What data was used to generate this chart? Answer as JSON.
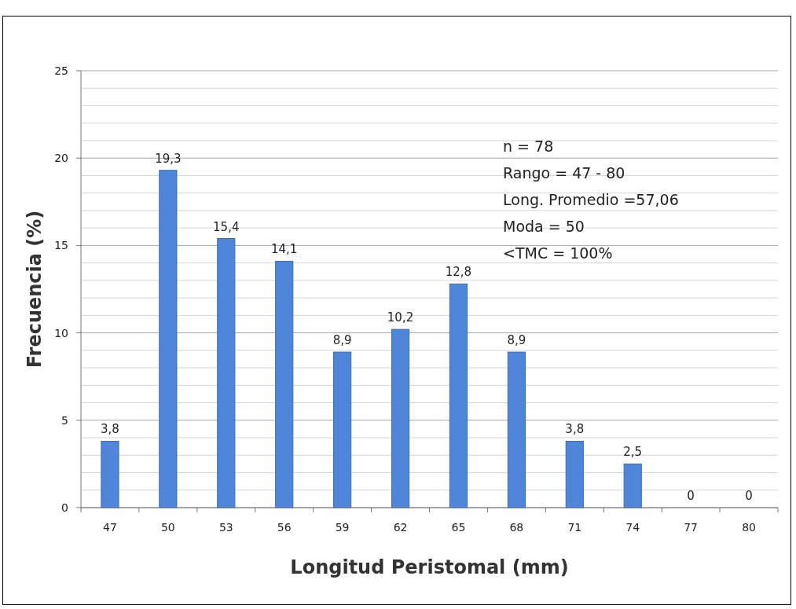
{
  "chart_data": {
    "type": "bar",
    "xlabel": "Longitud Peristomal (mm)",
    "ylabel": "Frecuencia (%)",
    "categories": [
      "47",
      "50",
      "53",
      "56",
      "59",
      "62",
      "65",
      "68",
      "71",
      "74",
      "77",
      "80"
    ],
    "values": [
      3.8,
      19.3,
      15.4,
      14.1,
      8.9,
      10.2,
      12.8,
      8.9,
      3.8,
      2.5,
      0,
      0
    ],
    "value_labels": [
      "3,8",
      "19,3",
      "15,4",
      "14,1",
      "8,9",
      "10,2",
      "12,8",
      "8,9",
      "3,8",
      "2,5",
      "0",
      "0"
    ],
    "color": "#4f86d9",
    "ylim": [
      0,
      25
    ],
    "yticks": [
      0,
      {
        "value": 1,
        "label": null
      },
      {
        "value": 2,
        "label": null
      },
      {
        "value": 3,
        "label": null
      },
      {
        "value": 4,
        "label": null
      },
      5,
      {
        "value": 6,
        "label": null
      },
      {
        "value": 7,
        "label": null
      },
      {
        "value": 8,
        "label": null
      },
      {
        "value": 9,
        "label": null
      },
      10,
      {
        "value": 11,
        "label": null
      },
      {
        "value": 12,
        "label": null
      },
      {
        "value": 13,
        "label": null
      },
      {
        "value": 14,
        "label": null
      },
      15,
      {
        "value": 16,
        "label": null
      },
      {
        "value": 17,
        "label": null
      },
      {
        "value": 18,
        "label": null
      },
      {
        "value": 19,
        "label": null
      },
      20,
      {
        "value": 21,
        "label": null
      },
      {
        "value": 22,
        "label": null
      },
      {
        "value": 23,
        "label": null
      },
      {
        "value": 24,
        "label": null
      },
      25
    ],
    "grid": "y",
    "annotations": [
      "n = 78",
      "Rango = 47 - 80",
      "Long. Promedio =57,06",
      "Moda = 50",
      "<TMC = 100%"
    ]
  }
}
